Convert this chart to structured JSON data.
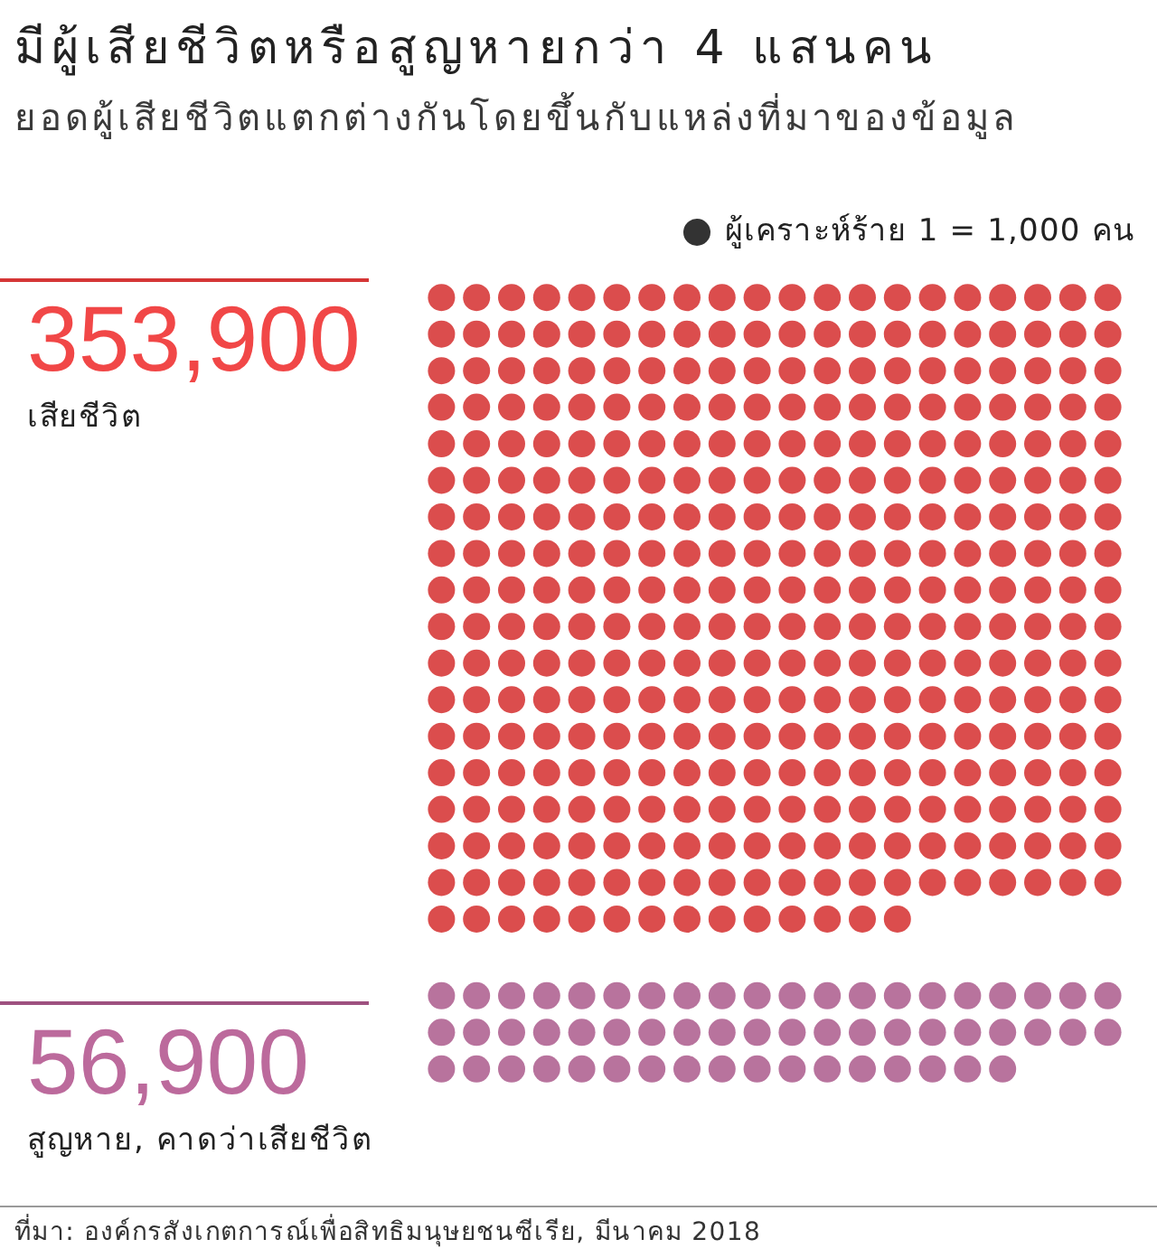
{
  "chart_data": {
    "type": "other",
    "title": "มีผู้เสียชีวิตหรือสูญหายกว่า 4 แสนคน",
    "subtitle": "ยอดผู้เสียชีวิตแตกต่างกันโดยขึ้นกับแหล่งที่มาของข้อมูล",
    "legend_title": "ผู้เคราะห์ร้าย 1 = 1,000 คน",
    "categories": [
      "เสียชีวิต",
      "สูญหาย, คาดว่าเสียชีวิต"
    ],
    "values": [
      353900,
      56900
    ],
    "colors": [
      "#db4d4d",
      "#b8739d"
    ],
    "value_labels": [
      "353,900",
      "56,900"
    ],
    "annotations": [
      "ที่มา: องค์กรสังเกตการณ์เพื่อสิทธิมนุษยชนซีเรีย, มีนาคม 2018"
    ]
  }
}
